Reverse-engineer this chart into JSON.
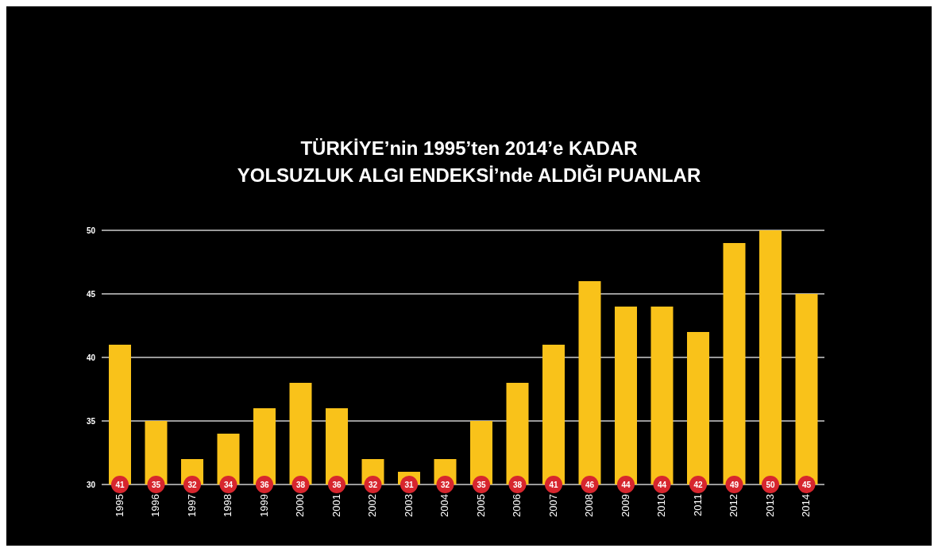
{
  "chart_data": {
    "type": "bar",
    "title": "TÜRKİYE’nin 1995’ten 2014’e KADAR\nYOLSUZLUK ALGI ENDEKSİ’nde ALDIĞI PUANLAR",
    "categories": [
      "1995",
      "1996",
      "1997",
      "1998",
      "1999",
      "2000",
      "2001",
      "2002",
      "2003",
      "2004",
      "2005",
      "2006",
      "2007",
      "2008",
      "2009",
      "2010",
      "2011",
      "2012",
      "2013",
      "2014"
    ],
    "values": [
      41,
      35,
      32,
      34,
      36,
      38,
      36,
      32,
      31,
      32,
      35,
      38,
      41,
      46,
      44,
      44,
      42,
      49,
      50,
      45
    ],
    "color": "#f9c21a",
    "ylim": [
      30,
      50
    ],
    "yticks": [
      30,
      35,
      40,
      45,
      50
    ],
    "grid": "y",
    "data_labels": true
  }
}
